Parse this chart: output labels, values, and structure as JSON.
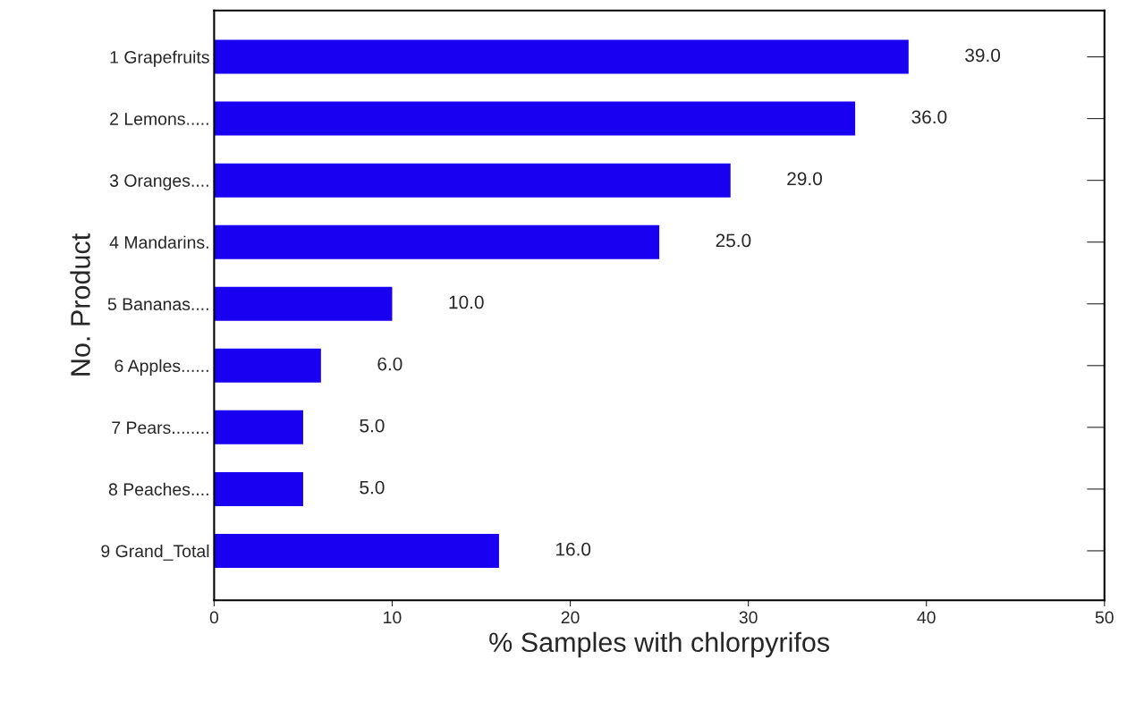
{
  "chart_data": {
    "type": "bar",
    "orientation": "horizontal",
    "xlabel": "% Samples with chlorpyrifos",
    "ylabel": "No. Product",
    "categories": [
      "1 Grapefruits",
      "2 Lemons.....",
      "3 Oranges....",
      "4 Mandarins.",
      "5 Bananas....",
      "6 Apples......",
      "7 Pears........",
      "8 Peaches....",
      "9 Grand_Total"
    ],
    "values": [
      39,
      36,
      29,
      25,
      10,
      6,
      5,
      5,
      16
    ],
    "value_labels": [
      "39.0",
      "36.0",
      "29.0",
      "25.0",
      "10.0",
      "6.0",
      "5.0",
      "5.0",
      "16.0"
    ],
    "color": "#1a00f0",
    "xlim": [
      0,
      50
    ],
    "xticks": [
      0,
      10,
      20,
      30,
      40,
      50
    ],
    "grid": false
  }
}
